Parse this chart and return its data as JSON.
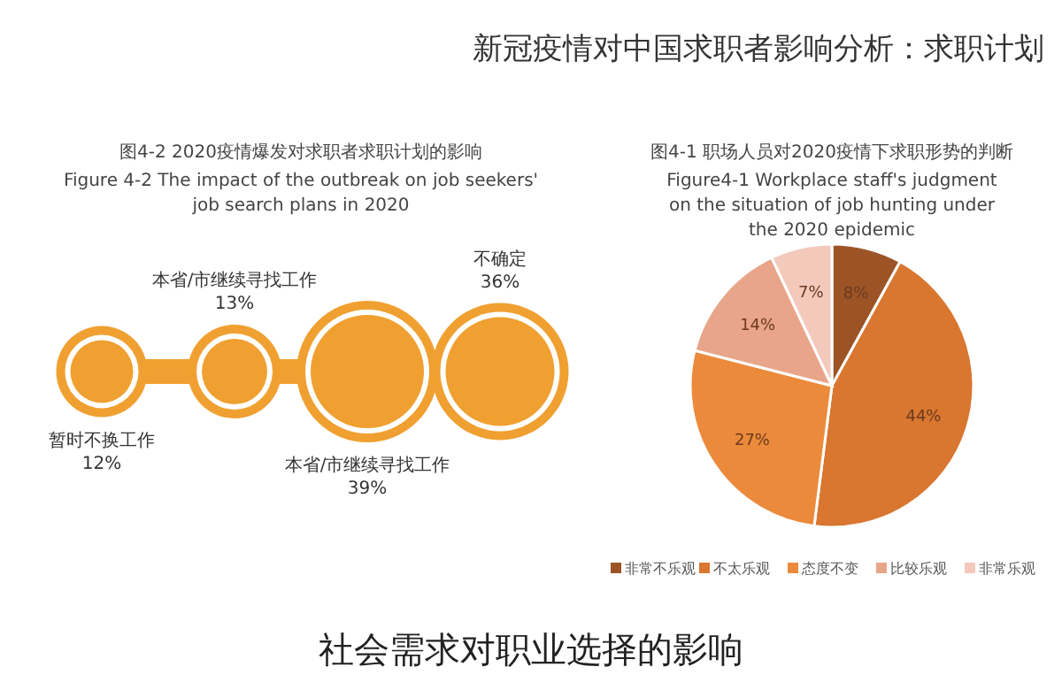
{
  "chart_data": [
    {
      "type": "other",
      "title": "图4-2 2020疫情爆发对求职者求职计划的影响",
      "subtitle": "Figure 4-2 The impact of the outbreak on job seekers' job search plans in 2020",
      "categories": [
        "暂时不换工作",
        "本省/市继续寻找工作",
        "本省/市继续寻找工作",
        "不确定"
      ],
      "values": [
        12,
        13,
        39,
        36
      ],
      "value_labels": [
        "12%",
        "13%",
        "39%",
        "36%"
      ],
      "color": "#f0a030",
      "annotations": [
        "新冠疫情对中国求职者影响分析：求职计划",
        "社会需求对职业选择的影响"
      ]
    },
    {
      "type": "pie",
      "title": "图4-1 职场人员对2020疫情下求职形势的判断",
      "subtitle": "Figure4-1 Workplace staff's judgment on the situation of job hunting under the 2020 epidemic",
      "categories": [
        "非常不乐观",
        "不太乐观",
        "态度不变",
        "比较乐观",
        "非常乐观"
      ],
      "values": [
        8,
        44,
        27,
        14,
        7
      ],
      "value_labels": [
        "8%",
        "44%",
        "27%",
        "14%",
        "7%"
      ],
      "colors": [
        "#9c5427",
        "#d9762f",
        "#ec8a3c",
        "#e8a58a",
        "#f3c9bb"
      ],
      "legend": "bottom"
    }
  ]
}
